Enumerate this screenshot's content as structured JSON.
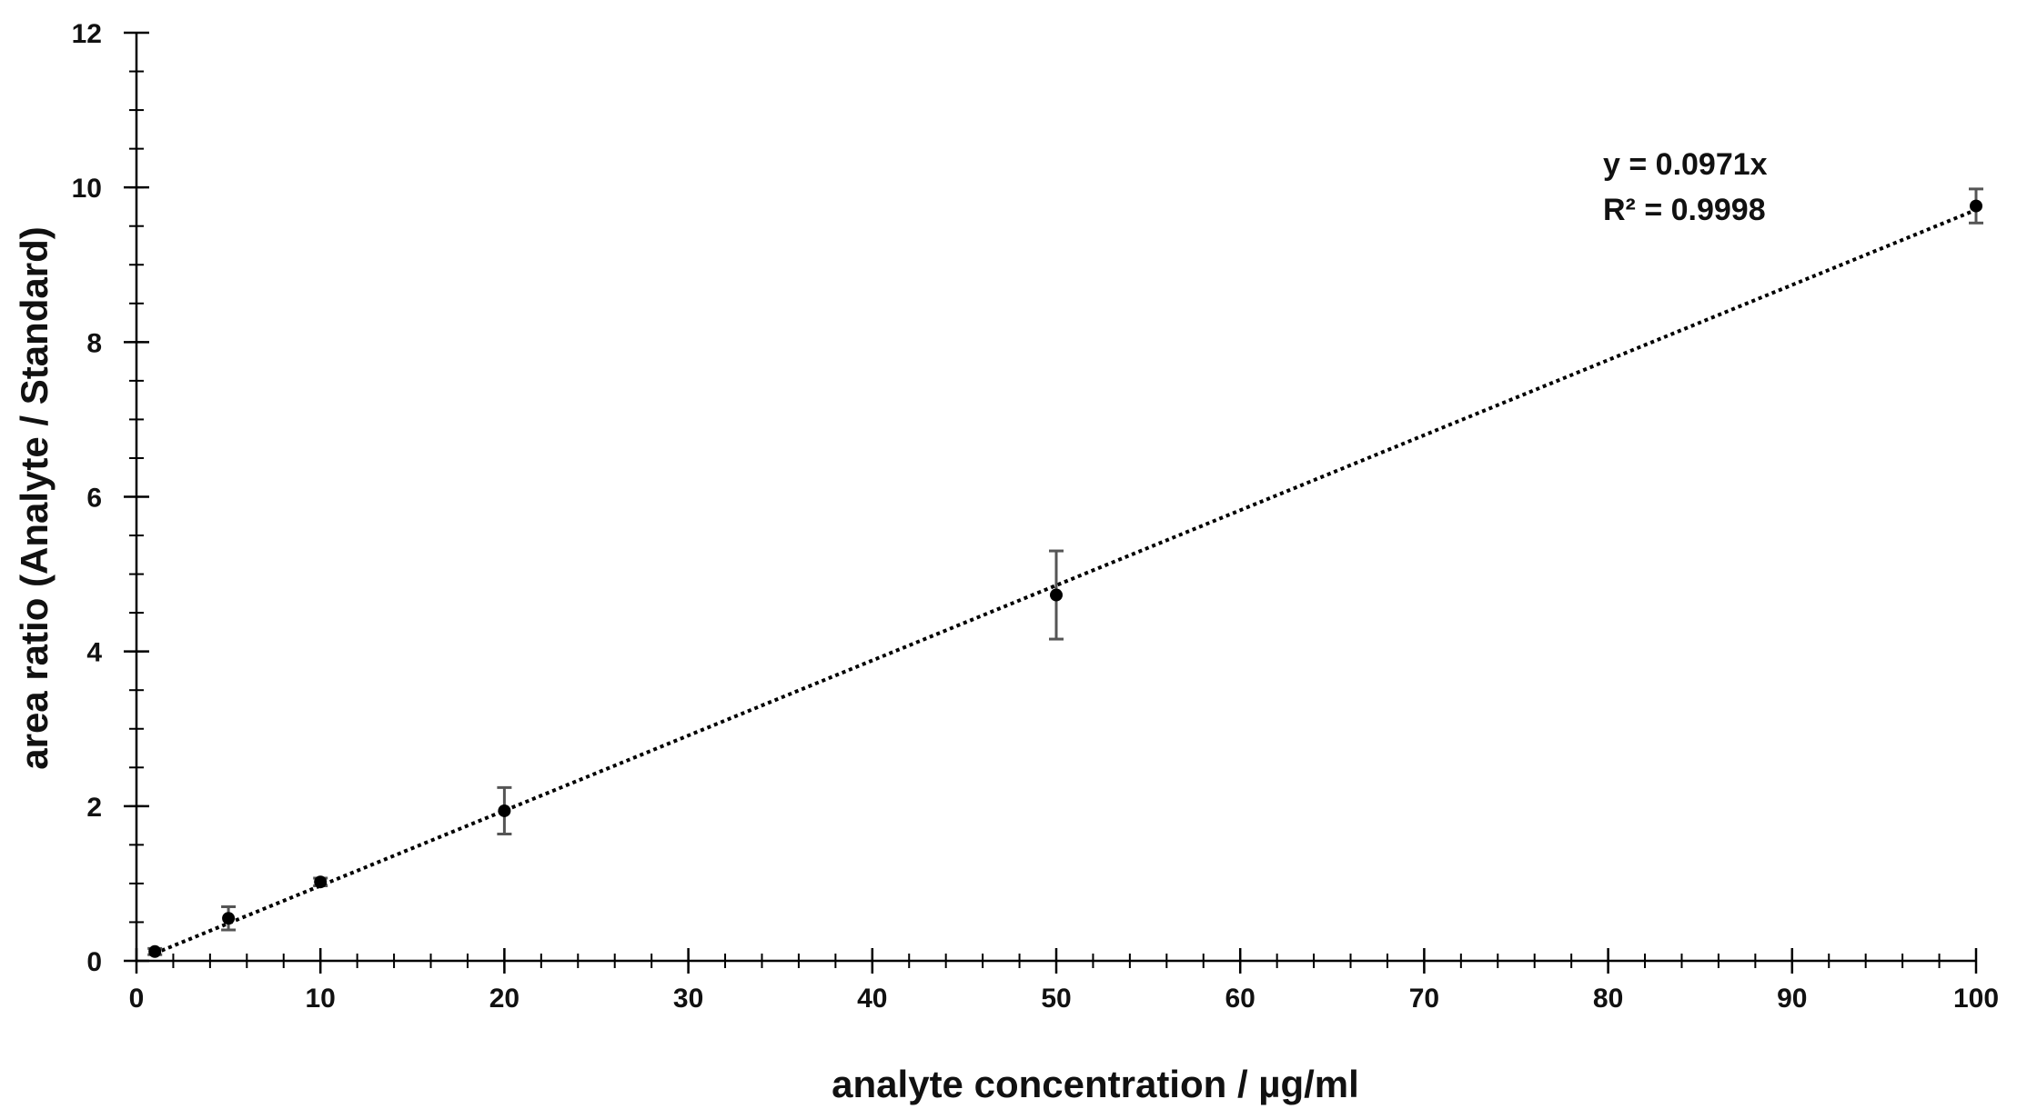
{
  "chart_data": {
    "type": "scatter",
    "xlabel": "analyte concentration / µg/ml",
    "ylabel": "area ratio (Analyte / Standard)",
    "xlim": [
      0,
      100
    ],
    "ylim": [
      0,
      12
    ],
    "x_ticks": [
      0,
      10,
      20,
      30,
      40,
      50,
      60,
      70,
      80,
      90,
      100
    ],
    "y_ticks": [
      0,
      2,
      4,
      6,
      8,
      10,
      12
    ],
    "x_tick_labels": [
      "0",
      "10",
      "20",
      "30",
      "40",
      "50",
      "60",
      "70",
      "80",
      "90",
      "100"
    ],
    "y_tick_labels": [
      "0",
      "2",
      "4",
      "6",
      "8",
      "10",
      "12"
    ],
    "x_minor_step": 2,
    "y_minor_step": 0.5,
    "grid": false,
    "points": [
      {
        "x": 1,
        "y": 0.12,
        "err": 0.04
      },
      {
        "x": 5,
        "y": 0.55,
        "err": 0.15
      },
      {
        "x": 10,
        "y": 1.02,
        "err": 0.05
      },
      {
        "x": 20,
        "y": 1.94,
        "err": 0.3
      },
      {
        "x": 50,
        "y": 4.73,
        "err": 0.57
      },
      {
        "x": 100,
        "y": 9.76,
        "err": 0.22
      }
    ],
    "trendline": {
      "type": "linear-through-origin",
      "slope": 0.0971,
      "x_range": [
        1,
        100
      ],
      "style": "dotted"
    },
    "annotation": {
      "equation": "y = 0.0971x",
      "r_squared": "R² = 0.9998",
      "placement": "top-right"
    },
    "colors": {
      "points": "#000000",
      "trendline": "#000000",
      "error_bars": "#555555",
      "axes": "#000000"
    }
  }
}
